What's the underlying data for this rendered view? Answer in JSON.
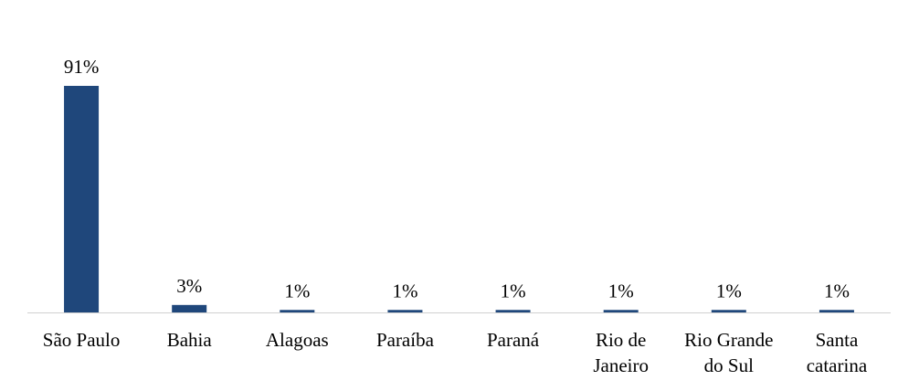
{
  "chart_data": {
    "type": "bar",
    "categories": [
      "São Paulo",
      "Bahia",
      "Alagoas",
      "Paraíba",
      "Paraná",
      "Rio de Janeiro",
      "Rio Grande do Sul",
      "Santa catarina"
    ],
    "values": [
      91,
      3,
      1,
      1,
      1,
      1,
      1,
      1
    ],
    "value_labels": [
      "91%",
      "3%",
      "1%",
      "1%",
      "1%",
      "1%",
      "1%",
      "1%"
    ],
    "color": "#1f477b"
  }
}
